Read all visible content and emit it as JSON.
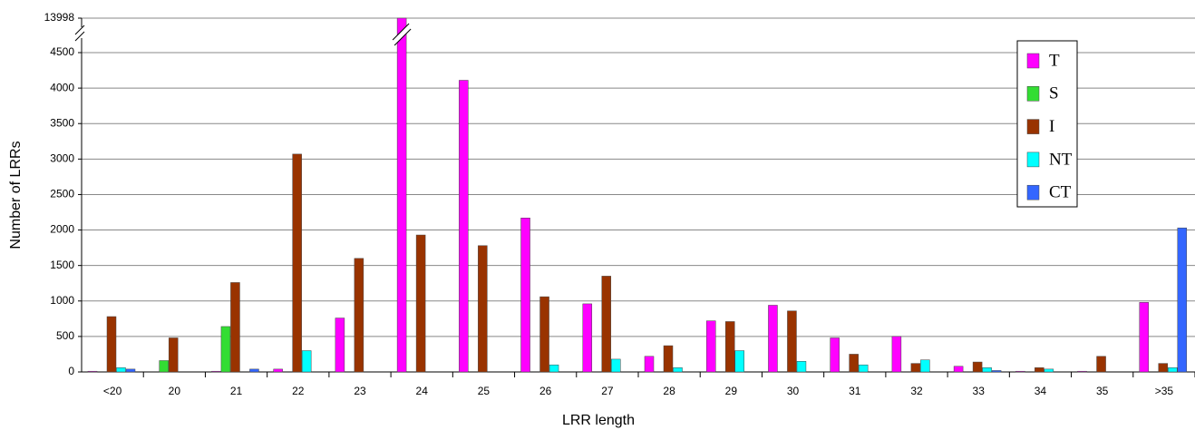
{
  "chart_data": {
    "type": "bar",
    "y_label": "Number of LRRs",
    "x_label": "LRR length",
    "categories": [
      "<20",
      "20",
      "21",
      "22",
      "23",
      "24",
      "25",
      "26",
      "27",
      "28",
      "29",
      "30",
      "31",
      "32",
      "33",
      "34",
      "35",
      ">35"
    ],
    "series": [
      {
        "name": "T",
        "color": "#ff00ff",
        "values": [
          10,
          0,
          10,
          40,
          760,
          13998,
          4110,
          2170,
          960,
          220,
          720,
          940,
          480,
          500,
          80,
          10,
          10,
          980
        ]
      },
      {
        "name": "S",
        "color": "#33dd33",
        "values": [
          0,
          160,
          640,
          0,
          0,
          0,
          0,
          0,
          0,
          0,
          0,
          0,
          0,
          0,
          0,
          0,
          0,
          0
        ]
      },
      {
        "name": "I",
        "color": "#993300",
        "values": [
          780,
          480,
          1260,
          3070,
          1600,
          1930,
          1780,
          1060,
          1350,
          370,
          710,
          860,
          250,
          120,
          140,
          60,
          220,
          120
        ]
      },
      {
        "name": "NT",
        "color": "#00ffff",
        "values": [
          60,
          0,
          0,
          300,
          0,
          0,
          0,
          100,
          180,
          60,
          300,
          150,
          100,
          170,
          60,
          40,
          0,
          60
        ]
      },
      {
        "name": "CT",
        "color": "#3366ff",
        "values": [
          40,
          0,
          40,
          0,
          0,
          0,
          0,
          0,
          0,
          0,
          0,
          0,
          0,
          0,
          20,
          0,
          0,
          2030
        ]
      }
    ],
    "ylim": [
      0,
      13998
    ],
    "yticks": [
      0,
      500,
      1000,
      1500,
      2000,
      2500,
      3000,
      3500,
      4000,
      4500,
      13998
    ],
    "y_break": true,
    "grid": true,
    "legend": "upper right"
  }
}
